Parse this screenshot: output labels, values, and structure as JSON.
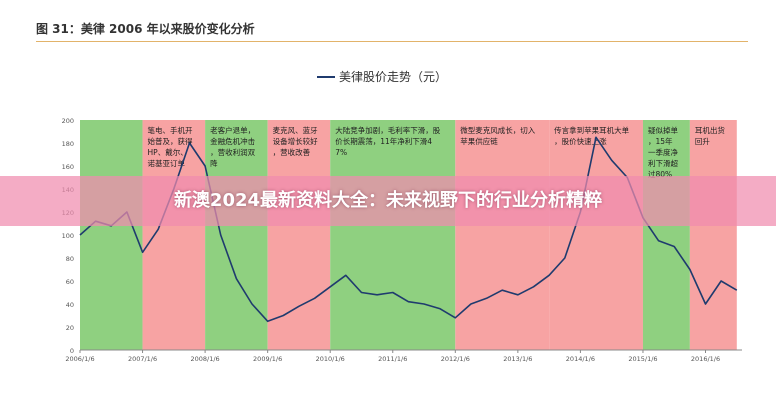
{
  "figure_title": "图 31：美律 2006 年以来股价变化分析",
  "banner_text": "新澳2024最新资料大全：未来视野下的行业分析精粹",
  "colors": {
    "line": "#1f3b6e",
    "green_band": "#8fd080",
    "red_band": "#f7a3a3",
    "rule": "#e2b36a"
  },
  "chart_data": {
    "type": "line",
    "title": "",
    "series": [
      {
        "name": "美律股价走势（元）",
        "x": [
          "2006-01",
          "2006-04",
          "2006-07",
          "2006-10",
          "2007-01",
          "2007-04",
          "2007-07",
          "2007-10",
          "2008-01",
          "2008-04",
          "2008-07",
          "2008-10",
          "2009-01",
          "2009-04",
          "2009-07",
          "2009-10",
          "2010-01",
          "2010-04",
          "2010-07",
          "2010-10",
          "2011-01",
          "2011-04",
          "2011-07",
          "2011-10",
          "2012-01",
          "2012-04",
          "2012-07",
          "2012-10",
          "2013-01",
          "2013-04",
          "2013-07",
          "2013-10",
          "2014-01",
          "2014-04",
          "2014-07",
          "2014-10",
          "2015-01",
          "2015-04",
          "2015-07",
          "2015-10",
          "2016-01",
          "2016-04",
          "2016-07"
        ],
        "values": [
          100,
          112,
          108,
          120,
          85,
          105,
          140,
          180,
          160,
          100,
          62,
          40,
          25,
          30,
          38,
          45,
          55,
          65,
          50,
          48,
          50,
          42,
          40,
          36,
          28,
          40,
          45,
          52,
          48,
          55,
          65,
          80,
          120,
          185,
          165,
          150,
          115,
          95,
          90,
          70,
          40,
          60,
          52
        ]
      }
    ],
    "x_ticks": [
      "2006/1/6",
      "2007/1/6",
      "2008/1/6",
      "2009/1/6",
      "2010/1/6",
      "2011/1/6",
      "2012/1/6",
      "2013/1/6",
      "2014/1/6",
      "2015/1/6",
      "2016/1/6"
    ],
    "ylim": [
      0,
      200
    ],
    "y_ticks": [
      0,
      20,
      40,
      60,
      80,
      100,
      120,
      140,
      160,
      180,
      200
    ],
    "periods": [
      {
        "start": "2006-01",
        "end": "2007-01",
        "color": "green",
        "text": ""
      },
      {
        "start": "2007-01",
        "end": "2008-01",
        "color": "red",
        "text": "笔电、手机开始普及，获得HP、戴尔、诺基亚订单"
      },
      {
        "start": "2008-01",
        "end": "2009-01",
        "color": "green",
        "text": "老客户退单，金融危机冲击，营收利润双降"
      },
      {
        "start": "2009-01",
        "end": "2010-01",
        "color": "red",
        "text": "麦克风、蓝牙设备增长较好，营收改善"
      },
      {
        "start": "2010-01",
        "end": "2012-01",
        "color": "green",
        "text": "大陆竞争加剧，毛利率下滑，股价长期震荡，11年净利下滑47%"
      },
      {
        "start": "2012-01",
        "end": "2013-07",
        "color": "red",
        "text": "微型麦克风成长，切入苹果供应链"
      },
      {
        "start": "2013-07",
        "end": "2015-01",
        "color": "red",
        "text": "传言拿到苹果耳机大单，股价快速上涨"
      },
      {
        "start": "2015-01",
        "end": "2015-10",
        "color": "green",
        "text": "疑似掉单，15年一季度净利下滑超过80%"
      },
      {
        "start": "2015-10",
        "end": "2016-07",
        "color": "red",
        "text": "耳机出货回升"
      }
    ],
    "legend_position": "top-center",
    "grid": false
  }
}
